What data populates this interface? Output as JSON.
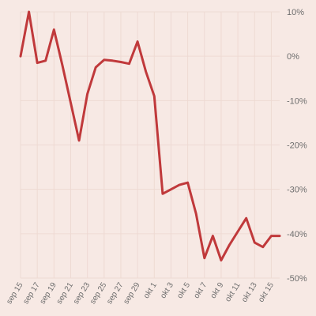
{
  "chart_data": {
    "type": "line",
    "title": "",
    "xlabel": "",
    "ylabel": "",
    "x": [
      "sep 15",
      "sep 16",
      "sep 17",
      "sep 18",
      "sep 19",
      "sep 20",
      "sep 21",
      "sep 22",
      "sep 23",
      "sep 24",
      "sep 25",
      "sep 26",
      "sep 27",
      "sep 28",
      "sep 29",
      "sep 30",
      "okt 1",
      "okt 2",
      "okt 3",
      "okt 4",
      "okt 5",
      "okt 6",
      "okt 7",
      "okt 8",
      "okt 9",
      "okt 10",
      "okt 11",
      "okt 12",
      "okt 13",
      "okt 14",
      "okt 15",
      "okt 16"
    ],
    "x_tick_labels": [
      "sep 15",
      "sep 17",
      "sep 19",
      "sep 21",
      "sep 23",
      "sep 25",
      "sep 27",
      "sep 29",
      "okt 1",
      "okt 3",
      "okt 5",
      "okt 7",
      "okt 9",
      "okt 11",
      "okt 13",
      "okt 15"
    ],
    "series": [
      {
        "color": "#c0393b",
        "values": [
          0,
          10,
          -1.5,
          -1,
          6,
          -2,
          -10.5,
          -19,
          -8.5,
          -2.5,
          -0.8,
          -1,
          -1.3,
          -1.7,
          3.3,
          -3.5,
          -9,
          -31,
          -30,
          -29,
          -28.5,
          -35.5,
          -45.5,
          -40.5,
          -46,
          -42.5,
          -39.5,
          -36.5,
          -42,
          -43,
          -40.5,
          -40.5
        ]
      }
    ],
    "ylim": [
      -50,
      10
    ],
    "y_ticks": [
      10,
      0,
      -10,
      -20,
      -30,
      -40,
      -50
    ],
    "y_tick_labels": [
      "10%",
      "0%",
      "-10%",
      "-20%",
      "-30%",
      "-40%",
      "-50%"
    ],
    "y_axis_side": "right",
    "grid": true,
    "legend": "none",
    "colors": {
      "background": "#f7e9e4",
      "grid": "#eedad3",
      "text": "#6e6e6e"
    }
  }
}
